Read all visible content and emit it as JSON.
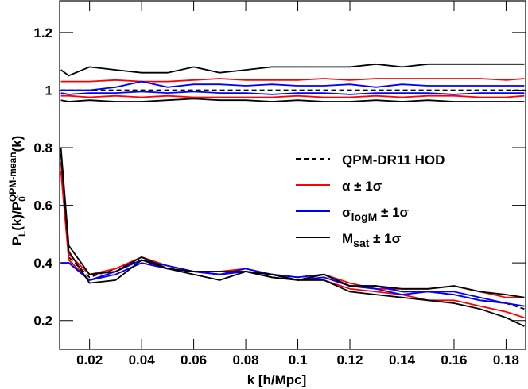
{
  "chart_data": {
    "type": "line",
    "xlabel": "k [h/Mpc]",
    "ylabel": [
      "P",
      "L",
      "(k)/P",
      "0",
      "QPM-mean",
      "(k)"
    ],
    "xlim": [
      0.0085,
      0.1875
    ],
    "ylim": [
      0.1,
      1.31
    ],
    "xticks": [
      0.02,
      0.04,
      0.06,
      0.08,
      0.1,
      0.12,
      0.14,
      0.16,
      0.18
    ],
    "yticks": [
      0.2,
      0.4,
      0.6,
      0.8,
      1,
      1.2
    ],
    "x": [
      0.009,
      0.012,
      0.02,
      0.03,
      0.04,
      0.05,
      0.06,
      0.07,
      0.08,
      0.09,
      0.1,
      0.11,
      0.12,
      0.13,
      0.14,
      0.15,
      0.16,
      0.17,
      0.18,
      0.187
    ],
    "series": [
      {
        "name": [
          "QPM-DR11 HOD"
        ],
        "color": "#000000",
        "dashed": true,
        "curves": [
          [
            1,
            1,
            1,
            1,
            1,
            1,
            1,
            1,
            1,
            1,
            1,
            1,
            1,
            1,
            1,
            1,
            1,
            1,
            1,
            1
          ],
          [
            0.72,
            0.42,
            0.35,
            0.38,
            0.41,
            0.38,
            0.37,
            0.36,
            0.37,
            0.36,
            0.35,
            0.36,
            0.32,
            0.32,
            0.3,
            0.3,
            0.29,
            0.27,
            0.26,
            0.24
          ]
        ]
      },
      {
        "name": [
          "α ± 1σ"
        ],
        "color": "#ff0000",
        "dashed": false,
        "curves": [
          [
            1.03,
            1.03,
            1.03,
            1.035,
            1.03,
            1.03,
            1.035,
            1.04,
            1.035,
            1.035,
            1.035,
            1.04,
            1.035,
            1.04,
            1.04,
            1.04,
            1.04,
            1.04,
            1.035,
            1.04
          ],
          [
            0.98,
            0.98,
            0.975,
            0.98,
            0.975,
            0.98,
            0.975,
            0.975,
            0.975,
            0.975,
            0.98,
            0.975,
            0.975,
            0.98,
            0.975,
            0.98,
            0.98,
            0.975,
            0.975,
            0.98
          ],
          [
            0.75,
            0.43,
            0.36,
            0.38,
            0.42,
            0.39,
            0.37,
            0.37,
            0.38,
            0.36,
            0.34,
            0.36,
            0.33,
            0.31,
            0.31,
            0.31,
            0.32,
            0.3,
            0.28,
            0.28
          ],
          [
            0.72,
            0.41,
            0.34,
            0.36,
            0.4,
            0.38,
            0.37,
            0.36,
            0.37,
            0.35,
            0.34,
            0.34,
            0.31,
            0.3,
            0.29,
            0.27,
            0.27,
            0.25,
            0.23,
            0.21
          ]
        ]
      },
      {
        "name": [
          "σ",
          "logM",
          " ± 1σ"
        ],
        "color": "#0000ff",
        "dashed": false,
        "curves": [
          [
            1,
            1,
            1,
            1.01,
            1.03,
            1.01,
            1.02,
            1.02,
            1.015,
            1.02,
            1.015,
            1.015,
            1.02,
            1.01,
            1.02,
            1.015,
            1.015,
            1.015,
            1.015,
            1.015
          ],
          [
            0.99,
            0.985,
            0.99,
            0.99,
            0.995,
            0.99,
            0.995,
            0.99,
            0.99,
            0.985,
            0.99,
            0.99,
            0.985,
            0.99,
            0.99,
            0.99,
            0.985,
            0.99,
            0.99,
            0.99
          ],
          [
            0.4,
            0.4,
            0.34,
            0.37,
            0.41,
            0.39,
            0.37,
            0.36,
            0.38,
            0.36,
            0.35,
            0.36,
            0.32,
            0.32,
            0.3,
            0.3,
            0.3,
            0.28,
            0.26,
            0.25
          ],
          [
            0.4,
            0.4,
            0.34,
            0.36,
            0.4,
            0.38,
            0.37,
            0.36,
            0.37,
            0.36,
            0.34,
            0.35,
            0.32,
            0.31,
            0.29,
            0.3,
            0.29,
            0.27,
            0.26,
            0.25
          ]
        ]
      },
      {
        "name": [
          "M",
          "sat",
          " ± 1σ"
        ],
        "color": "#000000",
        "dashed": false,
        "curves": [
          [
            1.07,
            1.05,
            1.08,
            1.07,
            1.06,
            1.06,
            1.08,
            1.06,
            1.07,
            1.08,
            1.08,
            1.08,
            1.08,
            1.09,
            1.08,
            1.09,
            1.09,
            1.09,
            1.09,
            1.09
          ],
          [
            0.965,
            0.96,
            0.965,
            0.96,
            0.96,
            0.965,
            0.97,
            0.965,
            0.965,
            0.96,
            0.965,
            0.96,
            0.96,
            0.965,
            0.96,
            0.965,
            0.96,
            0.96,
            0.96,
            0.96
          ],
          [
            0.8,
            0.46,
            0.36,
            0.37,
            0.42,
            0.38,
            0.37,
            0.37,
            0.37,
            0.36,
            0.34,
            0.36,
            0.32,
            0.32,
            0.31,
            0.31,
            0.32,
            0.3,
            0.29,
            0.28
          ],
          [
            0.78,
            0.44,
            0.33,
            0.34,
            0.41,
            0.38,
            0.36,
            0.34,
            0.37,
            0.35,
            0.34,
            0.34,
            0.3,
            0.29,
            0.28,
            0.27,
            0.26,
            0.24,
            0.21,
            0.18
          ]
        ]
      }
    ]
  }
}
